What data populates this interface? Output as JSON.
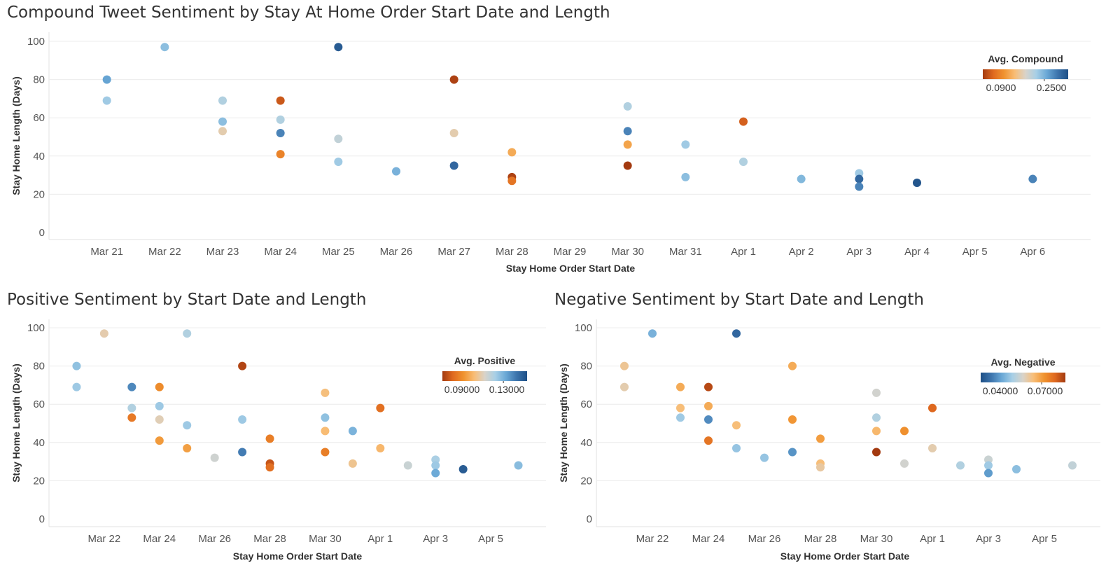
{
  "chart_data": [
    {
      "type": "scatter",
      "title": "Compound Tweet Sentiment by Stay At Home Order Start Date and Length",
      "xlabel": "Stay Home Order Start Date",
      "ylabel": "Stay Home Length (Days)",
      "x_ticks": [
        "Mar 21",
        "Mar 22",
        "Mar 23",
        "Mar 24",
        "Mar 25",
        "Mar 26",
        "Mar 27",
        "Mar 28",
        "Mar 29",
        "Mar 30",
        "Mar 31",
        "Apr 1",
        "Apr 2",
        "Apr 3",
        "Apr 4",
        "Apr 5",
        "Apr 6"
      ],
      "x_range": [
        "Mar 20",
        "Apr 7"
      ],
      "ylim": [
        0,
        100
      ],
      "y_ticks": [
        0,
        20,
        40,
        60,
        80,
        100
      ],
      "legend": {
        "title": "Avg. Compound",
        "min_label": "0.0900",
        "max_label": "0.2500",
        "scale": "orange-blue diverging",
        "min": 0.05,
        "max": 0.3,
        "position": "top-right"
      },
      "points": [
        {
          "x": "Mar 21",
          "y": 80,
          "value": 0.24
        },
        {
          "x": "Mar 21",
          "y": 69,
          "value": 0.21
        },
        {
          "x": "Mar 22",
          "y": 97,
          "value": 0.22
        },
        {
          "x": "Mar 23",
          "y": 69,
          "value": 0.2
        },
        {
          "x": "Mar 23",
          "y": 58,
          "value": 0.22
        },
        {
          "x": "Mar 23",
          "y": 53,
          "value": 0.165
        },
        {
          "x": "Mar 24",
          "y": 69,
          "value": 0.07
        },
        {
          "x": "Mar 24",
          "y": 59,
          "value": 0.2
        },
        {
          "x": "Mar 24",
          "y": 52,
          "value": 0.26
        },
        {
          "x": "Mar 24",
          "y": 41,
          "value": 0.1
        },
        {
          "x": "Mar 25",
          "y": 97,
          "value": 0.29
        },
        {
          "x": "Mar 25",
          "y": 49,
          "value": 0.19
        },
        {
          "x": "Mar 25",
          "y": 37,
          "value": 0.21
        },
        {
          "x": "Mar 26",
          "y": 32,
          "value": 0.23
        },
        {
          "x": "Mar 27",
          "y": 80,
          "value": 0.055
        },
        {
          "x": "Mar 27",
          "y": 52,
          "value": 0.165
        },
        {
          "x": "Mar 27",
          "y": 35,
          "value": 0.28
        },
        {
          "x": "Mar 28",
          "y": 42,
          "value": 0.13
        },
        {
          "x": "Mar 28",
          "y": 29,
          "value": 0.055
        },
        {
          "x": "Mar 28",
          "y": 27,
          "value": 0.09
        },
        {
          "x": "Mar 30",
          "y": 66,
          "value": 0.2
        },
        {
          "x": "Mar 30",
          "y": 53,
          "value": 0.26
        },
        {
          "x": "Mar 30",
          "y": 46,
          "value": 0.125
        },
        {
          "x": "Mar 30",
          "y": 35,
          "value": 0.05
        },
        {
          "x": "Mar 31",
          "y": 46,
          "value": 0.21
        },
        {
          "x": "Mar 31",
          "y": 29,
          "value": 0.22
        },
        {
          "x": "Apr 1",
          "y": 58,
          "value": 0.075
        },
        {
          "x": "Apr 1",
          "y": 37,
          "value": 0.2
        },
        {
          "x": "Apr 2",
          "y": 28,
          "value": 0.225
        },
        {
          "x": "Apr 3",
          "y": 31,
          "value": 0.21
        },
        {
          "x": "Apr 3",
          "y": 28,
          "value": 0.28
        },
        {
          "x": "Apr 3",
          "y": 24,
          "value": 0.26
        },
        {
          "x": "Apr 4",
          "y": 26,
          "value": 0.295
        },
        {
          "x": "Apr 6",
          "y": 28,
          "value": 0.26
        }
      ]
    },
    {
      "type": "scatter",
      "title": "Positive Sentiment by Start Date and Length",
      "xlabel": "Stay Home Order Start Date",
      "ylabel": "Stay Home Length (Days)",
      "x_ticks": [
        "Mar 22",
        "Mar 24",
        "Mar 26",
        "Mar 28",
        "Mar 30",
        "Apr 1",
        "Apr 3",
        "Apr 5"
      ],
      "x_range": [
        "Mar 20",
        "Apr 7"
      ],
      "ylim": [
        0,
        100
      ],
      "y_ticks": [
        0,
        20,
        40,
        60,
        80,
        100
      ],
      "legend": {
        "title": "Avg. Positive",
        "min_label": "0.09000",
        "max_label": "0.13000",
        "scale": "orange-blue diverging",
        "min": 0.075,
        "max": 0.145,
        "position": "top-right"
      },
      "points": [
        {
          "x": "Mar 21",
          "y": 80,
          "value": 0.122
        },
        {
          "x": "Mar 21",
          "y": 69,
          "value": 0.12
        },
        {
          "x": "Mar 22",
          "y": 97,
          "value": 0.107
        },
        {
          "x": "Mar 23",
          "y": 69,
          "value": 0.133
        },
        {
          "x": "Mar 23",
          "y": 58,
          "value": 0.117
        },
        {
          "x": "Mar 23",
          "y": 53,
          "value": 0.087
        },
        {
          "x": "Mar 24",
          "y": 69,
          "value": 0.091
        },
        {
          "x": "Mar 24",
          "y": 59,
          "value": 0.12
        },
        {
          "x": "Mar 24",
          "y": 52,
          "value": 0.108
        },
        {
          "x": "Mar 24",
          "y": 41,
          "value": 0.094
        },
        {
          "x": "Mar 25",
          "y": 97,
          "value": 0.117
        },
        {
          "x": "Mar 25",
          "y": 49,
          "value": 0.12
        },
        {
          "x": "Mar 25",
          "y": 37,
          "value": 0.095
        },
        {
          "x": "Mar 26",
          "y": 32,
          "value": 0.112
        },
        {
          "x": "Mar 27",
          "y": 80,
          "value": 0.077
        },
        {
          "x": "Mar 27",
          "y": 52,
          "value": 0.12
        },
        {
          "x": "Mar 27",
          "y": 35,
          "value": 0.135
        },
        {
          "x": "Mar 28",
          "y": 42,
          "value": 0.088
        },
        {
          "x": "Mar 28",
          "y": 29,
          "value": 0.08
        },
        {
          "x": "Mar 28",
          "y": 27,
          "value": 0.085
        },
        {
          "x": "Mar 30",
          "y": 66,
          "value": 0.102
        },
        {
          "x": "Mar 30",
          "y": 53,
          "value": 0.122
        },
        {
          "x": "Mar 30",
          "y": 46,
          "value": 0.101
        },
        {
          "x": "Mar 30",
          "y": 35,
          "value": 0.088
        },
        {
          "x": "Mar 31",
          "y": 46,
          "value": 0.125
        },
        {
          "x": "Mar 31",
          "y": 29,
          "value": 0.104
        },
        {
          "x": "Apr 1",
          "y": 58,
          "value": 0.085
        },
        {
          "x": "Apr 1",
          "y": 37,
          "value": 0.1
        },
        {
          "x": "Apr 2",
          "y": 28,
          "value": 0.113
        },
        {
          "x": "Apr 3",
          "y": 31,
          "value": 0.118
        },
        {
          "x": "Apr 3",
          "y": 28,
          "value": 0.12
        },
        {
          "x": "Apr 3",
          "y": 24,
          "value": 0.127
        },
        {
          "x": "Apr 4",
          "y": 26,
          "value": 0.142
        },
        {
          "x": "Apr 6",
          "y": 28,
          "value": 0.123
        }
      ]
    },
    {
      "type": "scatter",
      "title": "Negative Sentiment by Start Date and Length",
      "xlabel": "Stay Home Order Start Date",
      "ylabel": "Stay Home Length (Days)",
      "x_ticks": [
        "Mar 22",
        "Mar 24",
        "Mar 26",
        "Mar 28",
        "Mar 30",
        "Apr 1",
        "Apr 3",
        "Apr 5"
      ],
      "x_range": [
        "Mar 20",
        "Apr 7"
      ],
      "ylim": [
        0,
        100
      ],
      "y_ticks": [
        0,
        20,
        40,
        60,
        80,
        100
      ],
      "legend": {
        "title": "Avg. Negative",
        "min_label": "0.04000",
        "max_label": "0.07000",
        "scale": "blue-orange diverging",
        "min": 0.035,
        "max": 0.085,
        "position": "top-right"
      },
      "points": [
        {
          "x": "Mar 21",
          "y": 80,
          "value": 0.064
        },
        {
          "x": "Mar 21",
          "y": 69,
          "value": 0.062
        },
        {
          "x": "Mar 22",
          "y": 97,
          "value": 0.049
        },
        {
          "x": "Mar 23",
          "y": 69,
          "value": 0.069
        },
        {
          "x": "Mar 23",
          "y": 58,
          "value": 0.066
        },
        {
          "x": "Mar 23",
          "y": 53,
          "value": 0.053
        },
        {
          "x": "Mar 24",
          "y": 69,
          "value": 0.083
        },
        {
          "x": "Mar 24",
          "y": 59,
          "value": 0.069
        },
        {
          "x": "Mar 24",
          "y": 52,
          "value": 0.044
        },
        {
          "x": "Mar 24",
          "y": 41,
          "value": 0.077
        },
        {
          "x": "Mar 25",
          "y": 97,
          "value": 0.039
        },
        {
          "x": "Mar 25",
          "y": 49,
          "value": 0.066
        },
        {
          "x": "Mar 25",
          "y": 37,
          "value": 0.052
        },
        {
          "x": "Mar 26",
          "y": 32,
          "value": 0.052
        },
        {
          "x": "Mar 27",
          "y": 80,
          "value": 0.069
        },
        {
          "x": "Mar 27",
          "y": 52,
          "value": 0.072
        },
        {
          "x": "Mar 27",
          "y": 35,
          "value": 0.045
        },
        {
          "x": "Mar 28",
          "y": 42,
          "value": 0.071
        },
        {
          "x": "Mar 28",
          "y": 29,
          "value": 0.066
        },
        {
          "x": "Mar 28",
          "y": 27,
          "value": 0.063
        },
        {
          "x": "Mar 30",
          "y": 66,
          "value": 0.059
        },
        {
          "x": "Mar 30",
          "y": 53,
          "value": 0.055
        },
        {
          "x": "Mar 30",
          "y": 46,
          "value": 0.067
        },
        {
          "x": "Mar 30",
          "y": 35,
          "value": 0.085
        },
        {
          "x": "Mar 31",
          "y": 46,
          "value": 0.073
        },
        {
          "x": "Mar 31",
          "y": 29,
          "value": 0.059
        },
        {
          "x": "Apr 1",
          "y": 58,
          "value": 0.079
        },
        {
          "x": "Apr 1",
          "y": 37,
          "value": 0.062
        },
        {
          "x": "Apr 2",
          "y": 28,
          "value": 0.055
        },
        {
          "x": "Apr 3",
          "y": 31,
          "value": 0.058
        },
        {
          "x": "Apr 3",
          "y": 28,
          "value": 0.053
        },
        {
          "x": "Apr 3",
          "y": 24,
          "value": 0.046
        },
        {
          "x": "Apr 4",
          "y": 26,
          "value": 0.051
        },
        {
          "x": "Apr 6",
          "y": 28,
          "value": 0.057
        }
      ]
    }
  ],
  "colors": {
    "orange_blue_scale": [
      "#a33a10",
      "#e06a20",
      "#f0932f",
      "#f8bd76",
      "#d9d3c9",
      "#a7cfe6",
      "#6aa8d6",
      "#3d75ad",
      "#1e4f86"
    ],
    "blue_orange_scale": [
      "#1e4f86",
      "#3d75ad",
      "#6aa8d6",
      "#a7cfe6",
      "#d9d3c9",
      "#f8bd76",
      "#f0932f",
      "#e06a20",
      "#a33a10"
    ],
    "gridline": "#ececec",
    "axis_text": "#555555",
    "title_text": "#333333"
  }
}
